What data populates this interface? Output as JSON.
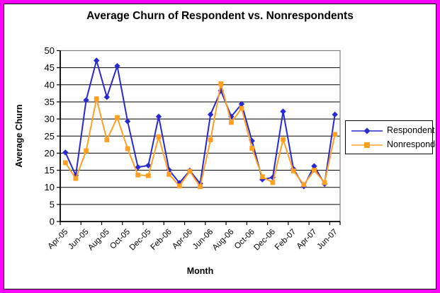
{
  "frame": {
    "border_color": "#ff00ff",
    "inner_line_color": "#000000"
  },
  "chart_data": {
    "type": "line",
    "title": "Average Churn of Respondent vs. Nonrespondents",
    "xlabel": "Month",
    "ylabel": "Average Churn",
    "ylim": [
      0,
      50
    ],
    "ytick_step": 5,
    "y_tick_labels": [
      "0",
      "5",
      "10",
      "15",
      "20",
      "25",
      "30",
      "35",
      "40",
      "45",
      "50"
    ],
    "grid": true,
    "legend_position": "right",
    "plot_border_color": "#808080",
    "axis_color": "#000000",
    "categories": [
      "Apr-05",
      "May-05",
      "Jun-05",
      "Jul-05",
      "Aug-05",
      "Sep-05",
      "Oct-05",
      "Nov-05",
      "Dec-05",
      "Jan-06",
      "Feb-06",
      "Mar-06",
      "Apr-06",
      "May-06",
      "Jun-06",
      "Jul-06",
      "Aug-06",
      "Sep-06",
      "Oct-06",
      "Nov-06",
      "Dec-06",
      "Jan-07",
      "Feb-07",
      "Mar-07",
      "Apr-07",
      "May-07",
      "Jun-07"
    ],
    "x_tick_labels": [
      "Apr-05",
      "Jun-05",
      "Aug-05",
      "Oct-05",
      "Dec-05",
      "Feb-06",
      "Apr-06",
      "Jun-06",
      "Aug-06",
      "Oct-06",
      "Dec-06",
      "Feb-07",
      "Apr-07",
      "Jun-07"
    ],
    "series": [
      {
        "name": "Respondent",
        "color": "#2929d2",
        "marker": "diamond",
        "values": [
          20.2,
          13.5,
          35.5,
          47.1,
          36.4,
          45.5,
          29.3,
          15.9,
          16.4,
          30.7,
          15.1,
          11.3,
          14.9,
          11.1,
          31.3,
          38.3,
          30.7,
          34.4,
          23.6,
          12.3,
          12.9,
          32.2,
          15.4,
          10.3,
          16.2,
          11.0,
          31.3
        ]
      },
      {
        "name": "Nonrespondent",
        "color": "#ffa023",
        "marker": "square",
        "values": [
          17.2,
          12.6,
          20.7,
          35.9,
          23.9,
          30.4,
          21.3,
          13.6,
          13.4,
          24.8,
          13.8,
          10.4,
          14.7,
          10.2,
          23.9,
          40.3,
          29.0,
          33.1,
          21.4,
          13.1,
          11.4,
          24.0,
          14.8,
          10.8,
          15.0,
          11.4,
          25.5
        ]
      }
    ]
  }
}
